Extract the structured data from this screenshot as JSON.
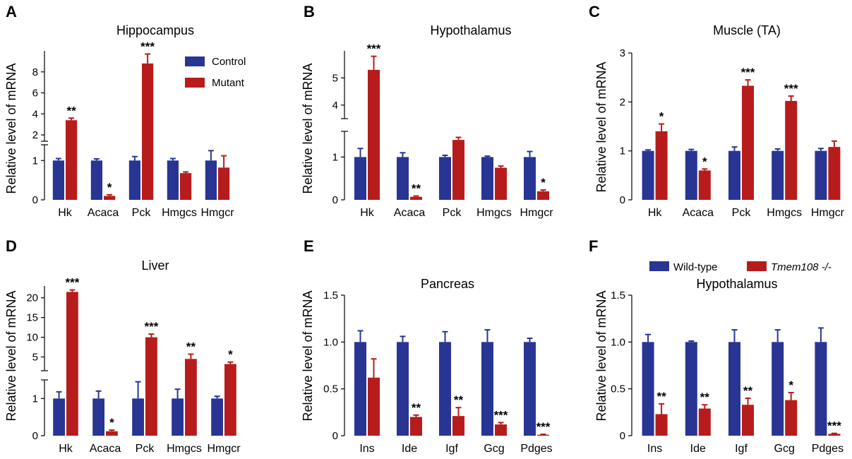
{
  "colors": {
    "control": "#283593",
    "mutant": "#b71c1c",
    "axis": "#000000"
  },
  "legends": {
    "A": [
      "Control",
      "Mutant"
    ],
    "global": [
      "Wild-type",
      "Tmem108 -/-"
    ]
  },
  "chart_data": [
    {
      "id": "A",
      "letter": "A",
      "type": "bar",
      "title": "Hippocampus",
      "ylabel": "Relative level of mRNA",
      "xlabel": "",
      "categories": [
        "Hk",
        "Acaca",
        "Pck",
        "Hmgcs",
        "Hmgcr"
      ],
      "series": [
        {
          "name": "Control",
          "values": [
            1.0,
            1.0,
            1.0,
            1.0,
            1.0
          ],
          "errors": [
            0.05,
            0.04,
            0.1,
            0.05,
            0.25
          ]
        },
        {
          "name": "Mutant",
          "values": [
            3.4,
            0.1,
            8.8,
            0.68,
            0.82
          ],
          "errors": [
            0.2,
            0.03,
            0.9,
            0.03,
            0.3
          ]
        }
      ],
      "significance": [
        [
          "",
          "**"
        ],
        [
          "",
          "*"
        ],
        [
          "",
          "***"
        ],
        [
          "",
          ""
        ],
        [
          "",
          ""
        ]
      ],
      "axis": {
        "breakLower": [
          0,
          1.4
        ],
        "breakUpper": [
          1.4,
          10
        ],
        "lowerTicks": [
          0,
          1
        ],
        "upperTicks": [
          2,
          4,
          6,
          8
        ]
      }
    },
    {
      "id": "B",
      "letter": "B",
      "type": "bar",
      "title": "Hypothalamus",
      "ylabel": "Relative level of mRNA",
      "xlabel": "",
      "categories": [
        "Hk",
        "Acaca",
        "Pck",
        "Hmgcs",
        "Hmgcr"
      ],
      "series": [
        {
          "name": "Control",
          "values": [
            1.0,
            1.0,
            1.0,
            1.0,
            1.0
          ],
          "errors": [
            0.2,
            0.1,
            0.04,
            0.02,
            0.13
          ]
        },
        {
          "name": "Mutant",
          "values": [
            5.3,
            0.07,
            1.4,
            0.75,
            0.2
          ],
          "errors": [
            0.5,
            0.02,
            0.06,
            0.04,
            0.03
          ]
        }
      ],
      "significance": [
        [
          "",
          "***"
        ],
        [
          "",
          "**"
        ],
        [
          "",
          ""
        ],
        [
          "",
          ""
        ],
        [
          "",
          "*"
        ]
      ],
      "axis": {
        "breakLower": [
          0,
          1.6
        ],
        "breakUpper": [
          3.5,
          6
        ],
        "lowerTicks": [
          0,
          1
        ],
        "upperTicks": [
          4,
          5
        ]
      }
    },
    {
      "id": "C",
      "letter": "C",
      "type": "bar",
      "title": "Muscle (TA)",
      "ylabel": "Relative level of mRNA",
      "xlabel": "",
      "categories": [
        "Hk",
        "Acaca",
        "Pck",
        "Hmgcs",
        "Hmgcr"
      ],
      "series": [
        {
          "name": "Control",
          "values": [
            1.0,
            1.0,
            1.0,
            1.0,
            1.0
          ],
          "errors": [
            0.02,
            0.03,
            0.08,
            0.04,
            0.05
          ]
        },
        {
          "name": "Mutant",
          "values": [
            1.4,
            0.6,
            2.33,
            2.02,
            1.08
          ],
          "errors": [
            0.15,
            0.03,
            0.12,
            0.1,
            0.12
          ]
        }
      ],
      "significance": [
        [
          "",
          "*"
        ],
        [
          "",
          "*"
        ],
        [
          "",
          "***"
        ],
        [
          "",
          "***"
        ],
        [
          "",
          ""
        ]
      ],
      "axis": {
        "ylim": [
          0,
          3
        ],
        "ticks": [
          0,
          1,
          2,
          3
        ]
      }
    },
    {
      "id": "D",
      "letter": "D",
      "type": "bar",
      "title": "Liver",
      "ylabel": "Relative level of mRNA",
      "xlabel": "",
      "categories": [
        "Hk",
        "Acaca",
        "Pck",
        "Hmgcs",
        "Hmgcr"
      ],
      "series": [
        {
          "name": "Control",
          "values": [
            1.0,
            1.0,
            1.0,
            1.0,
            1.0
          ],
          "errors": [
            0.18,
            0.2,
            0.45,
            0.25,
            0.06
          ]
        },
        {
          "name": "Mutant",
          "values": [
            21.5,
            0.12,
            10.0,
            4.5,
            3.2
          ],
          "errors": [
            0.5,
            0.03,
            0.8,
            1.2,
            0.5
          ]
        }
      ],
      "significance": [
        [
          "",
          "***"
        ],
        [
          "",
          "*"
        ],
        [
          "",
          "***"
        ],
        [
          "",
          "**"
        ],
        [
          "",
          "*"
        ]
      ],
      "axis": {
        "breakLower": [
          0,
          1.5
        ],
        "breakUpper": [
          1.5,
          23
        ],
        "lowerTicks": [
          0,
          1
        ],
        "upperTicks": [
          5,
          10,
          15,
          20
        ]
      }
    },
    {
      "id": "E",
      "letter": "E",
      "type": "bar",
      "title": "Pancreas",
      "ylabel": "Relative level of mRNA",
      "xlabel": "",
      "categories": [
        "Ins",
        "Ide",
        "Igf",
        "Gcg",
        "Pdges"
      ],
      "series": [
        {
          "name": "Wild-type",
          "values": [
            1.0,
            1.0,
            1.0,
            1.0,
            1.0
          ],
          "errors": [
            0.12,
            0.06,
            0.11,
            0.13,
            0.04
          ]
        },
        {
          "name": "Tmem108 -/-",
          "values": [
            0.62,
            0.2,
            0.21,
            0.12,
            0.01
          ],
          "errors": [
            0.2,
            0.02,
            0.09,
            0.02,
            0.005
          ]
        }
      ],
      "significance": [
        [
          "",
          ""
        ],
        [
          "",
          "**"
        ],
        [
          "",
          "**"
        ],
        [
          "",
          "***"
        ],
        [
          "",
          "***"
        ]
      ],
      "axis": {
        "ylim": [
          0,
          1.5
        ],
        "ticks": [
          0,
          0.5,
          1.0,
          1.5
        ],
        "tickLabels": [
          "0",
          "0.5",
          "1.0",
          "1.5"
        ]
      }
    },
    {
      "id": "F",
      "letter": "F",
      "type": "bar",
      "title": "Hypothalamus",
      "ylabel": "Relative level of mRNA",
      "xlabel": "",
      "categories": [
        "Ins",
        "Ide",
        "Igf",
        "Gcg",
        "Pdges"
      ],
      "series": [
        {
          "name": "Wild-type",
          "values": [
            1.0,
            1.0,
            1.0,
            1.0,
            1.0
          ],
          "errors": [
            0.08,
            0.01,
            0.13,
            0.13,
            0.15
          ]
        },
        {
          "name": "Tmem108 -/-",
          "values": [
            0.23,
            0.29,
            0.33,
            0.38,
            0.02
          ],
          "errors": [
            0.11,
            0.04,
            0.07,
            0.08,
            0.005
          ]
        }
      ],
      "significance": [
        [
          "",
          "**"
        ],
        [
          "",
          "**"
        ],
        [
          "",
          "**"
        ],
        [
          "",
          "*"
        ],
        [
          "",
          "***"
        ]
      ],
      "axis": {
        "ylim": [
          0,
          1.5
        ],
        "ticks": [
          0,
          0.5,
          1.0,
          1.5
        ],
        "tickLabels": [
          "0",
          "0.5",
          "1.0",
          "1.5"
        ]
      }
    }
  ]
}
